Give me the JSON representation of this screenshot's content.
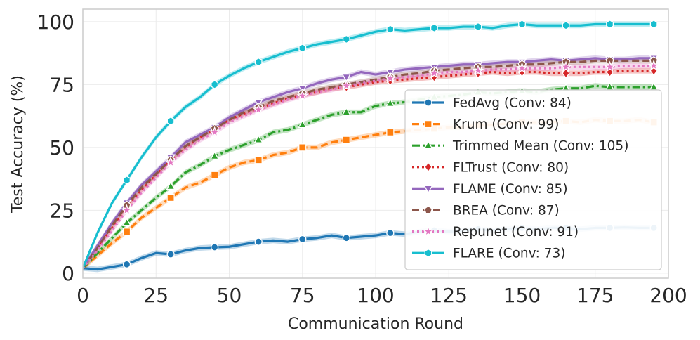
{
  "chart_data": {
    "type": "line",
    "title": "",
    "xlabel": "Communication Round",
    "ylabel": "Test Accuracy (%)",
    "xlim": [
      0,
      200
    ],
    "ylim": [
      -2,
      105
    ],
    "xticks": [
      "0",
      "25",
      "50",
      "75",
      "100",
      "125",
      "150",
      "175",
      "200"
    ],
    "yticks": [
      "0",
      "25",
      "50",
      "75",
      "100"
    ],
    "grid": true,
    "legend_position": "lower-right",
    "series": [
      {
        "name": "FedAvg",
        "legend": "FedAvg (Conv: 84)",
        "color": "#1f77b4",
        "dash": "solid",
        "marker": "circle",
        "x": [
          0,
          5,
          10,
          15,
          20,
          25,
          30,
          35,
          40,
          45,
          50,
          55,
          60,
          65,
          70,
          75,
          80,
          85,
          90,
          95,
          100,
          105,
          110,
          115,
          120,
          125,
          130,
          135,
          140,
          145,
          150,
          155,
          160,
          165,
          170,
          175,
          180,
          185,
          190,
          195
        ],
        "y": [
          2,
          1.5,
          2.5,
          3.5,
          6,
          8,
          7.5,
          9,
          10,
          10.3,
          10.5,
          11.5,
          12.5,
          13,
          12.5,
          13.5,
          14,
          15,
          14,
          14.5,
          15,
          16,
          15.5,
          16.5,
          17,
          16.5,
          17,
          17.5,
          17,
          17.5,
          18,
          17.5,
          18,
          18,
          17.5,
          18,
          18,
          18.2,
          18,
          18
        ]
      },
      {
        "name": "Krum",
        "legend": "Krum (Conv: 99)",
        "color": "#ff7f0e",
        "dash": "dashed",
        "marker": "square",
        "x": [
          0,
          5,
          10,
          15,
          20,
          25,
          30,
          35,
          40,
          45,
          50,
          55,
          60,
          65,
          70,
          75,
          80,
          85,
          90,
          95,
          100,
          105,
          110,
          115,
          120,
          125,
          130,
          135,
          140,
          145,
          150,
          155,
          160,
          165,
          170,
          175,
          180,
          185,
          190,
          195
        ],
        "y": [
          2,
          7,
          12,
          16.5,
          22,
          26,
          30,
          34,
          36,
          39,
          42,
          44,
          45,
          47,
          48,
          50,
          50,
          52,
          53,
          54,
          55,
          56,
          56.5,
          57,
          57.5,
          58,
          58,
          59,
          59,
          59.5,
          60,
          60,
          60,
          60.5,
          60,
          61,
          60.5,
          60.5,
          61,
          60
        ]
      },
      {
        "name": "Trimmed Mean",
        "legend": "Trimmed Mean (Conv: 105)",
        "color": "#2ca02c",
        "dash": "dashdot",
        "marker": "triangle-up",
        "x": [
          0,
          5,
          10,
          15,
          20,
          25,
          30,
          35,
          40,
          45,
          50,
          55,
          60,
          65,
          70,
          75,
          80,
          85,
          90,
          95,
          100,
          105,
          110,
          115,
          120,
          125,
          130,
          135,
          140,
          145,
          150,
          155,
          160,
          165,
          170,
          175,
          180,
          185,
          190,
          195
        ],
        "y": [
          2,
          8,
          14,
          20,
          25,
          30,
          34.5,
          40,
          43,
          46.5,
          49,
          51,
          53,
          56,
          57,
          59,
          61,
          63,
          64,
          64,
          66.5,
          67.5,
          68,
          69,
          70,
          70.5,
          71,
          72,
          71.5,
          72,
          72.5,
          72,
          73,
          73.5,
          73.5,
          74.5,
          74,
          74,
          74,
          74
        ]
      },
      {
        "name": "FLTrust",
        "legend": "FLTrust (Conv: 80)",
        "color": "#d62728",
        "dash": "dotted",
        "marker": "diamond",
        "x": [
          0,
          5,
          10,
          15,
          20,
          25,
          30,
          35,
          40,
          45,
          50,
          55,
          60,
          65,
          70,
          75,
          80,
          85,
          90,
          95,
          100,
          105,
          110,
          115,
          120,
          125,
          130,
          135,
          140,
          145,
          150,
          155,
          160,
          165,
          170,
          175,
          180,
          185,
          190,
          195
        ],
        "y": [
          2,
          10,
          18,
          26,
          33,
          39,
          45,
          50,
          54,
          57.5,
          61,
          63.5,
          65.5,
          67.5,
          69.5,
          71,
          72,
          73.5,
          74,
          75,
          76,
          76.5,
          77,
          77.5,
          78,
          78.5,
          79,
          79.5,
          80,
          79.5,
          80,
          80,
          79.5,
          79.5,
          79.5,
          80,
          80,
          80.5,
          80.5,
          80.5
        ]
      },
      {
        "name": "FLAME",
        "legend": "FLAME (Conv: 85)",
        "color": "#9467bd",
        "dash": "solid",
        "marker": "triangle-down",
        "x": [
          0,
          5,
          10,
          15,
          20,
          25,
          30,
          35,
          40,
          45,
          50,
          55,
          60,
          65,
          70,
          75,
          80,
          85,
          90,
          95,
          100,
          105,
          110,
          115,
          120,
          125,
          130,
          135,
          140,
          145,
          150,
          155,
          160,
          165,
          170,
          175,
          180,
          185,
          190,
          195
        ],
        "y": [
          2,
          11,
          20,
          28,
          35,
          40.5,
          46,
          52,
          55,
          58,
          62,
          65,
          68,
          70,
          72,
          73.5,
          75.5,
          77,
          78,
          80,
          79,
          80,
          81,
          81.5,
          82,
          82.5,
          83,
          83,
          83.5,
          84,
          84,
          84.5,
          85,
          84.5,
          85,
          85.5,
          85,
          85,
          85.5,
          85.5
        ]
      },
      {
        "name": "BREA",
        "legend": "BREA (Conv: 87)",
        "color": "#8c564b",
        "dash": "dashed",
        "marker": "pentagon",
        "x": [
          0,
          5,
          10,
          15,
          20,
          25,
          30,
          35,
          40,
          45,
          50,
          55,
          60,
          65,
          70,
          75,
          80,
          85,
          90,
          95,
          100,
          105,
          110,
          115,
          120,
          125,
          130,
          135,
          140,
          145,
          150,
          155,
          160,
          165,
          170,
          175,
          180,
          185,
          190,
          195
        ],
        "y": [
          2,
          10,
          19,
          27,
          34,
          39.5,
          45,
          50.5,
          54,
          57.5,
          61,
          64,
          66,
          68.5,
          70,
          71.5,
          73,
          74,
          75,
          76,
          77,
          78,
          79,
          79.5,
          80.5,
          81,
          81.5,
          82,
          82,
          82.5,
          83,
          83,
          83.5,
          84,
          84,
          84.5,
          84.5,
          84.5,
          84.5,
          84.5
        ]
      },
      {
        "name": "Repunet",
        "legend": "Repunet (Conv: 91)",
        "color": "#e377c2",
        "dash": "dotted",
        "marker": "star",
        "x": [
          0,
          5,
          10,
          15,
          20,
          25,
          30,
          35,
          40,
          45,
          50,
          55,
          60,
          65,
          70,
          75,
          80,
          85,
          90,
          95,
          100,
          105,
          110,
          115,
          120,
          125,
          130,
          135,
          140,
          145,
          150,
          155,
          160,
          165,
          170,
          175,
          180,
          185,
          190,
          195
        ],
        "y": [
          2,
          9,
          17,
          25,
          32,
          38,
          44,
          49,
          53,
          56,
          60,
          62.5,
          65,
          67,
          69,
          70.5,
          72,
          73,
          74.5,
          75.5,
          76.5,
          77.5,
          78,
          78.5,
          79.5,
          80,
          80,
          80.5,
          81,
          81,
          81.5,
          81.5,
          81.5,
          82,
          82,
          82,
          82,
          82.5,
          82.5,
          82.5
        ]
      },
      {
        "name": "FLARE",
        "legend": "FLARE (Conv: 73)",
        "color": "#17becf",
        "dash": "solid",
        "marker": "hexagon",
        "x": [
          0,
          5,
          10,
          15,
          20,
          25,
          30,
          35,
          40,
          45,
          50,
          55,
          60,
          65,
          70,
          75,
          80,
          85,
          90,
          95,
          100,
          105,
          110,
          115,
          120,
          125,
          130,
          135,
          140,
          145,
          150,
          155,
          160,
          165,
          170,
          175,
          180,
          185,
          190,
          195
        ],
        "y": [
          2,
          16,
          28,
          37,
          46,
          54,
          60.5,
          66,
          70,
          75,
          78.5,
          81.5,
          84,
          86,
          88,
          89.5,
          91,
          92,
          93,
          94.5,
          96,
          97,
          96.5,
          97,
          97.5,
          97.5,
          98,
          98,
          97.5,
          98.5,
          99,
          98.5,
          98.5,
          98.5,
          98.5,
          99,
          99,
          99,
          99,
          99
        ]
      }
    ]
  }
}
